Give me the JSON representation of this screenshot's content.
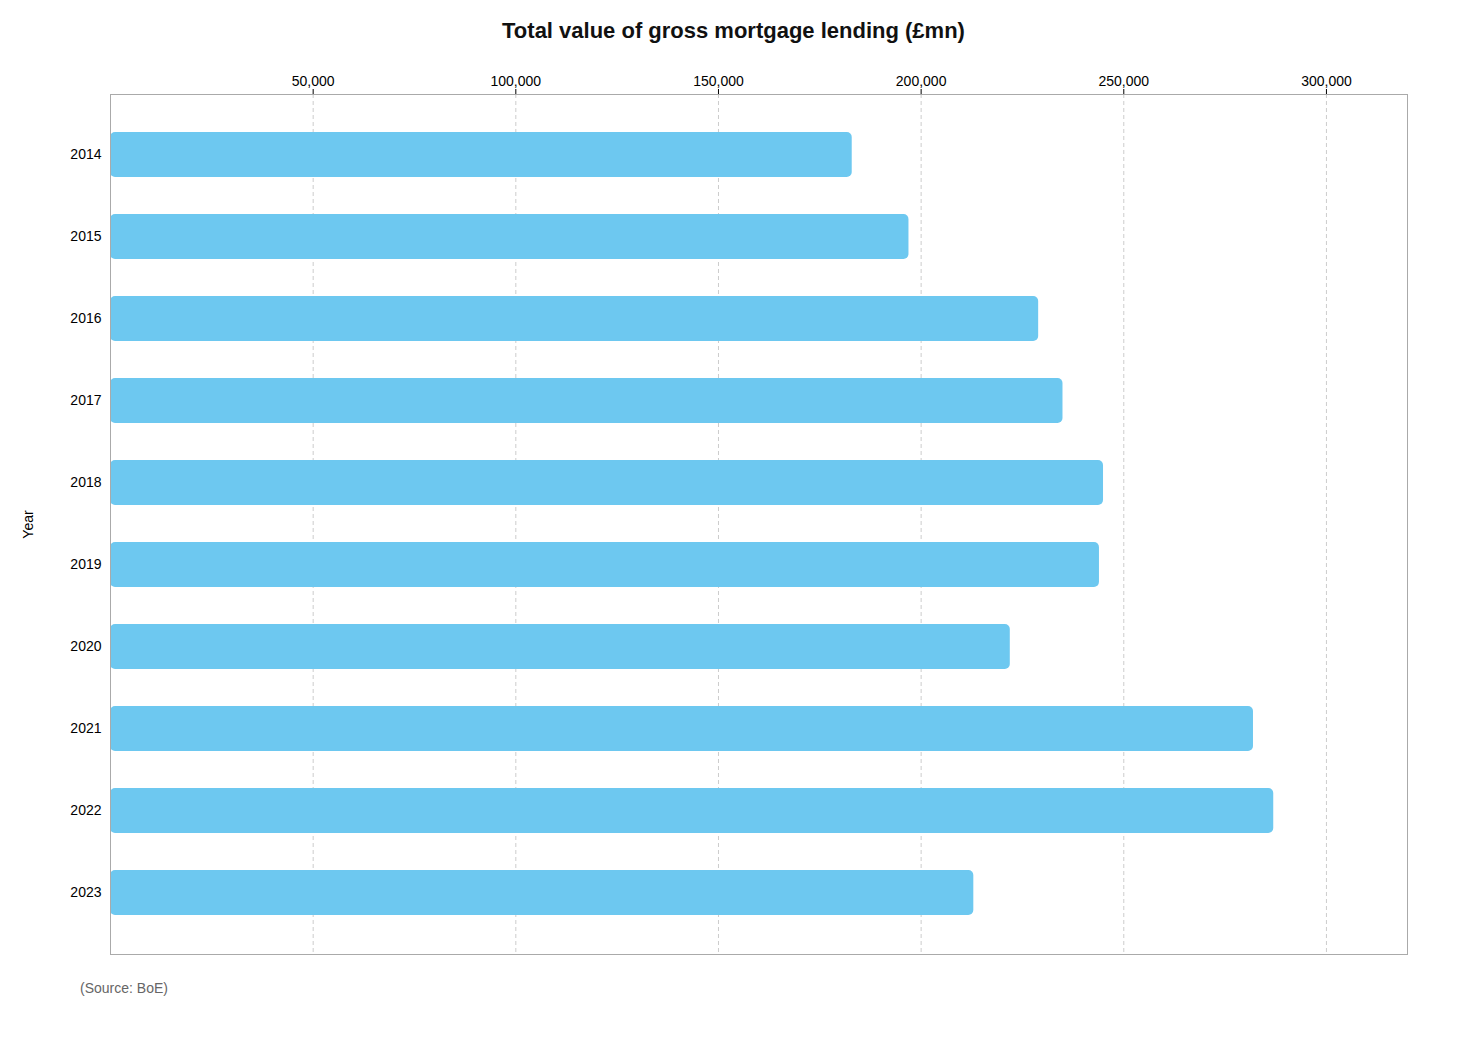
{
  "chart_data": {
    "type": "bar",
    "orientation": "horizontal",
    "title": "Total value of gross mortgage lending (£mn)",
    "ylabel": "Year",
    "categories": [
      "2014",
      "2015",
      "2016",
      "2017",
      "2018",
      "2019",
      "2020",
      "2021",
      "2022",
      "2023"
    ],
    "values": [
      183000,
      197000,
      229000,
      235000,
      245000,
      244000,
      222000,
      282000,
      287000,
      213000
    ],
    "color": "#6dc8f0",
    "xlim": [
      0,
      320000
    ],
    "xticks": [
      {
        "value": 50000,
        "label": "50,000"
      },
      {
        "value": 100000,
        "label": "100,000"
      },
      {
        "value": 150000,
        "label": "150,000"
      },
      {
        "value": 200000,
        "label": "200,000"
      },
      {
        "value": 250000,
        "label": "250,000"
      },
      {
        "value": 300000,
        "label": "300,000"
      }
    ],
    "grid": true,
    "annotations": [
      "(Source: BoE)"
    ]
  }
}
